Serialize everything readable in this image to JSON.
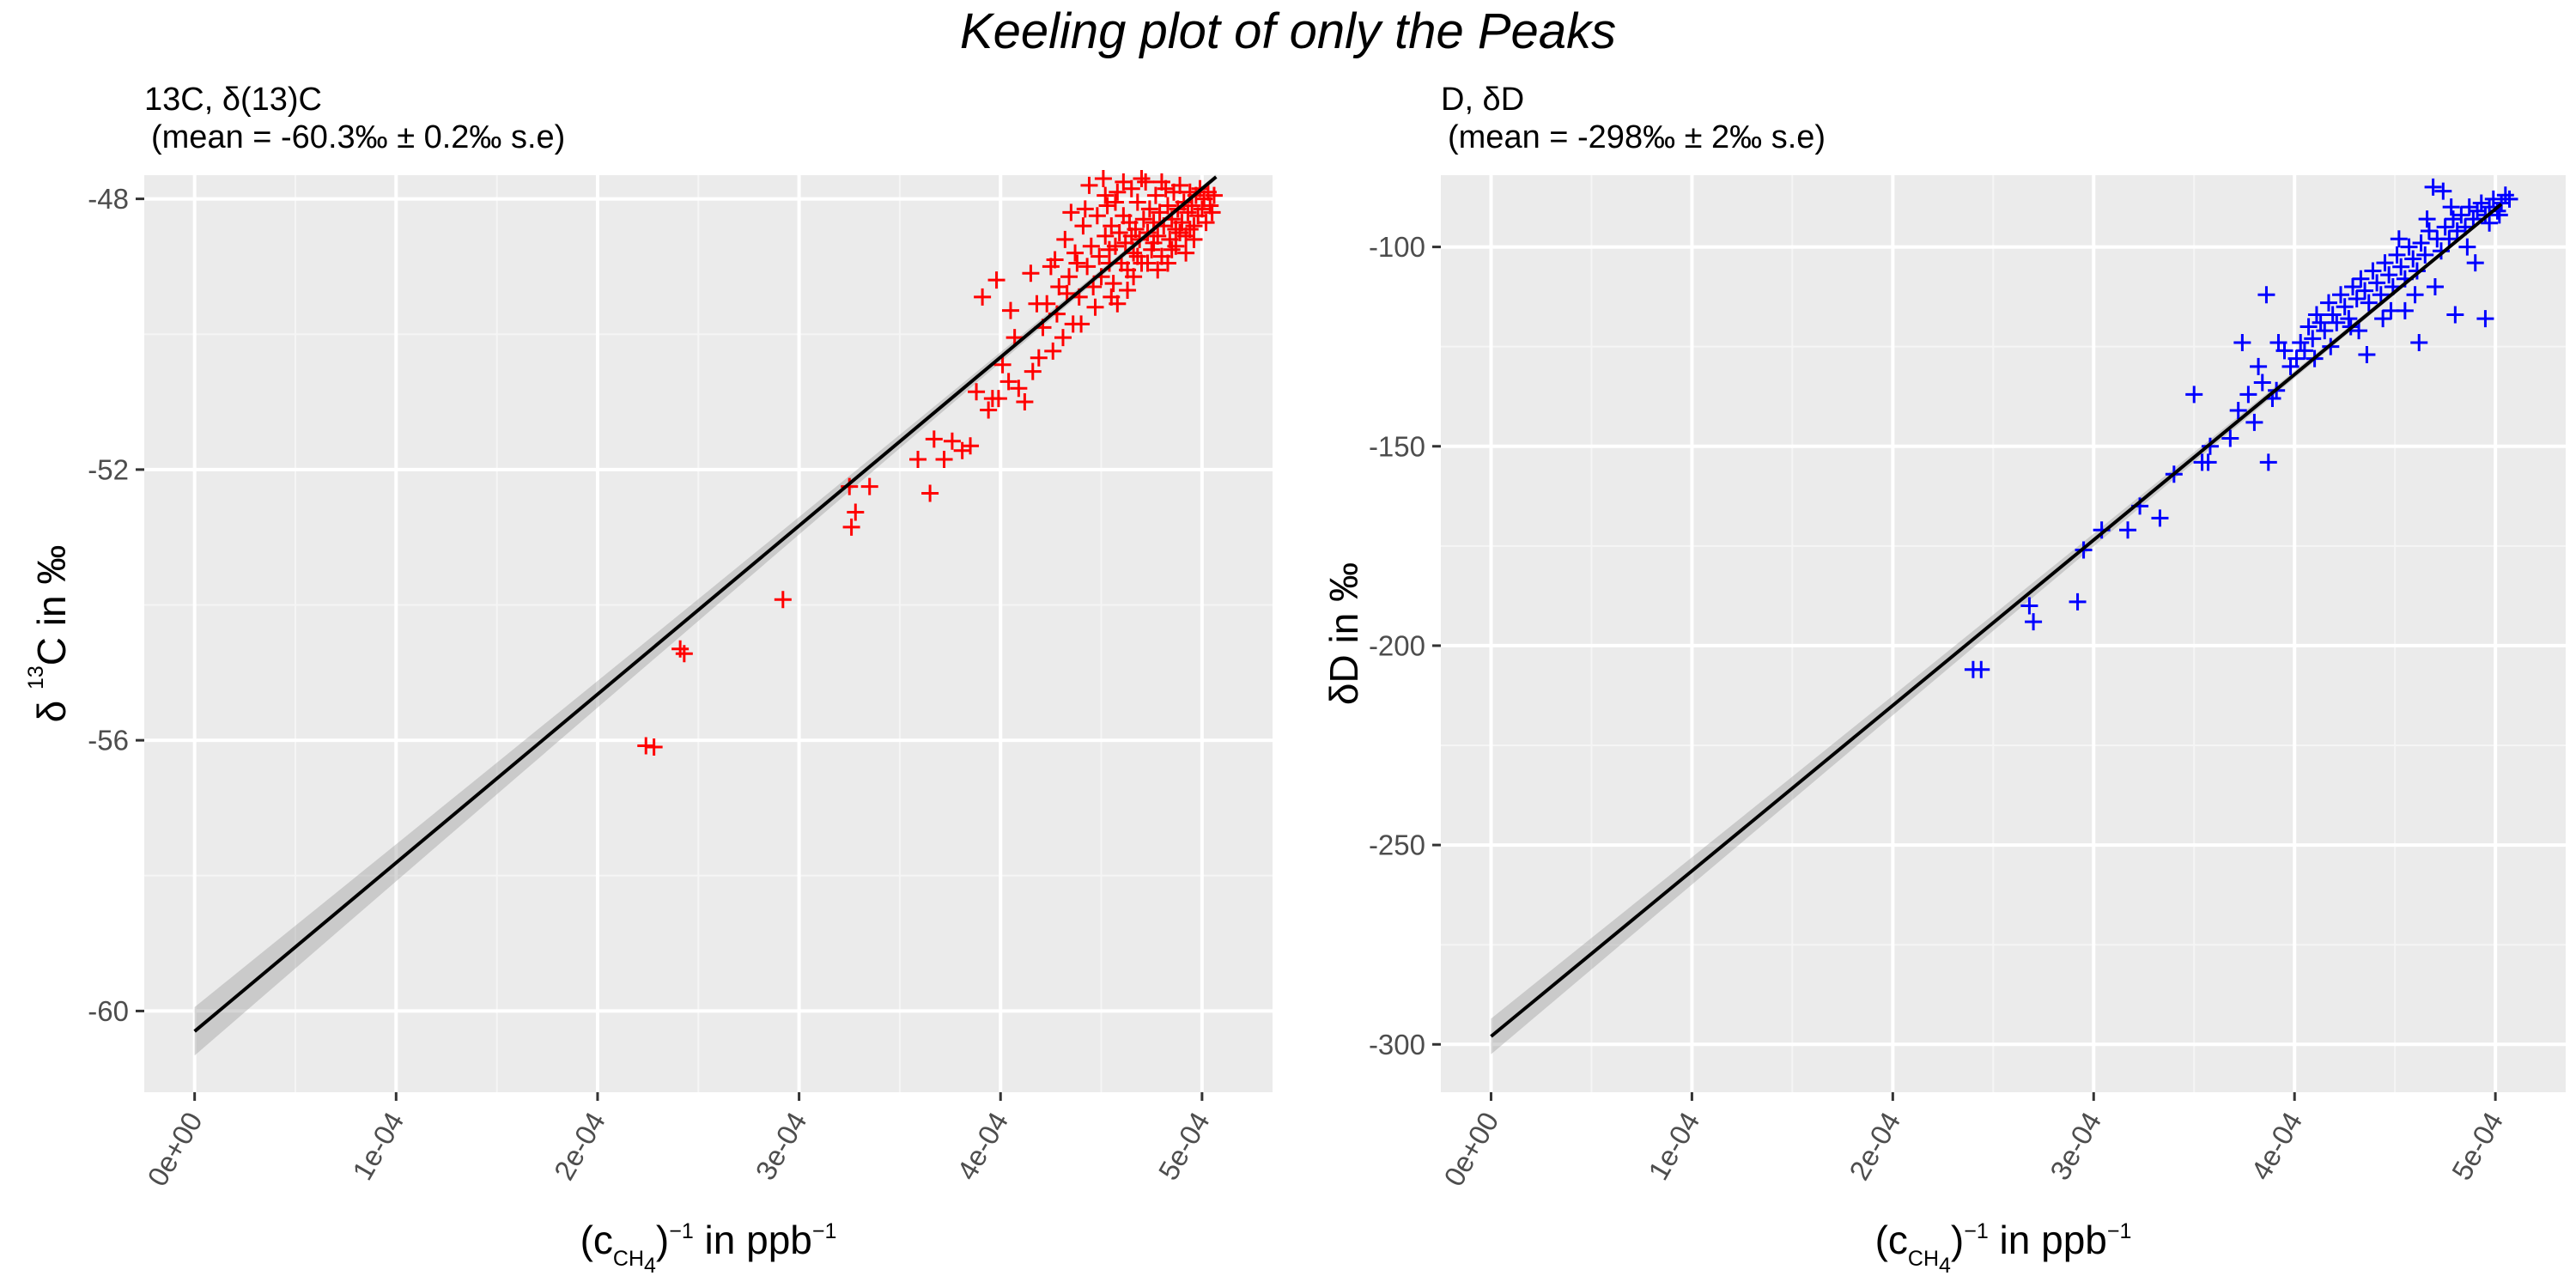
{
  "suptitle": "Keeling plot of only the Peaks",
  "chart_data": [
    {
      "type": "scatter",
      "title": "13C, δ(13)C",
      "subtitle": "(mean = -60.3‰ ± 0.2‰ s.e)",
      "xlabel_parts": [
        "(c",
        "CH",
        "4",
        ")",
        "−1",
        " in ppb",
        "−1"
      ],
      "ylabel_parts": [
        "δ ",
        "13",
        "C in ‰"
      ],
      "xlim": [
        -2.5e-05,
        0.000535
      ],
      "ylim": [
        -61.2,
        -47.65
      ],
      "x_ticks": [
        0,
        0.0001,
        0.0002,
        0.0003,
        0.0004,
        0.0005
      ],
      "x_tick_labels": [
        "0e+00",
        "1e-04",
        "2e-04",
        "3e-04",
        "4e-04",
        "5e-04"
      ],
      "y_ticks": [
        -60,
        -56,
        -52,
        -48
      ],
      "y_tick_labels": [
        "-60",
        "-56",
        "-52",
        "-48"
      ],
      "grid": true,
      "point_color": "#ff0000",
      "fit": {
        "intercept": -60.3,
        "slope": 24900,
        "x_range": [
          0,
          0.000507
        ],
        "ci_half_at_0": 0.32
      },
      "points": [
        [
          0.000224,
          -56.08
        ],
        [
          0.000228,
          -56.1
        ],
        [
          0.000241,
          -54.65
        ],
        [
          0.000243,
          -54.72
        ],
        [
          0.000292,
          -53.92
        ],
        [
          0.000325,
          -52.25
        ],
        [
          0.000326,
          -52.85
        ],
        [
          0.000328,
          -52.63
        ],
        [
          0.000335,
          -52.25
        ],
        [
          0.000359,
          -51.85
        ],
        [
          0.000365,
          -52.35
        ],
        [
          0.000367,
          -51.55
        ],
        [
          0.000372,
          -51.85
        ],
        [
          0.000376,
          -51.58
        ],
        [
          0.000381,
          -51.72
        ],
        [
          0.000385,
          -51.65
        ],
        [
          0.000388,
          -50.85
        ],
        [
          0.000391,
          -49.45
        ],
        [
          0.000394,
          -51.12
        ],
        [
          0.000396,
          -50.95
        ],
        [
          0.000399,
          -50.95
        ],
        [
          0.000401,
          -50.45
        ],
        [
          0.000404,
          -50.7
        ],
        [
          0.000407,
          -50.05
        ],
        [
          0.000409,
          -50.8
        ],
        [
          0.000412,
          -51.0
        ],
        [
          0.000416,
          -50.55
        ],
        [
          0.000419,
          -50.35
        ],
        [
          0.000421,
          -49.9
        ],
        [
          0.000423,
          -49.55
        ],
        [
          0.000426,
          -50.25
        ],
        [
          0.000428,
          -49.7
        ],
        [
          0.000431,
          -50.05
        ],
        [
          0.000433,
          -49.4
        ],
        [
          0.000436,
          -49.85
        ],
        [
          0.000398,
          -49.2
        ],
        [
          0.000405,
          -49.65
        ],
        [
          0.000415,
          -49.1
        ],
        [
          0.000418,
          -49.55
        ],
        [
          0.000425,
          -49.0
        ],
        [
          0.000429,
          -49.3
        ],
        [
          0.000432,
          -48.6
        ],
        [
          0.000434,
          -49.15
        ],
        [
          0.000437,
          -48.8
        ],
        [
          0.000439,
          -49.45
        ],
        [
          0.000441,
          -48.4
        ],
        [
          0.000443,
          -49.0
        ],
        [
          0.000445,
          -48.7
        ],
        [
          0.000446,
          -49.3
        ],
        [
          0.000448,
          -48.25
        ],
        [
          0.000449,
          -48.85
        ],
        [
          0.00045,
          -49.15
        ],
        [
          0.000452,
          -48.55
        ],
        [
          0.000453,
          -48.1
        ],
        [
          0.000454,
          -48.95
        ],
        [
          0.000455,
          -48.4
        ],
        [
          0.000456,
          -49.25
        ],
        [
          0.000457,
          -48.7
        ],
        [
          0.000458,
          -47.9
        ],
        [
          0.000459,
          -48.5
        ],
        [
          0.00046,
          -48.95
        ],
        [
          0.000461,
          -48.25
        ],
        [
          0.000462,
          -48.65
        ],
        [
          0.000463,
          -49.05
        ],
        [
          0.000464,
          -48.35
        ],
        [
          0.000465,
          -47.85
        ],
        [
          0.000466,
          -48.8
        ],
        [
          0.000467,
          -48.45
        ],
        [
          0.000468,
          -48.05
        ],
        [
          0.000469,
          -48.6
        ],
        [
          0.00047,
          -48.95
        ],
        [
          0.000471,
          -48.3
        ],
        [
          0.000472,
          -47.75
        ],
        [
          0.000473,
          -48.5
        ],
        [
          0.000474,
          -48.15
        ],
        [
          0.000475,
          -48.75
        ],
        [
          0.000476,
          -48.35
        ],
        [
          0.000477,
          -47.95
        ],
        [
          0.000478,
          -48.55
        ],
        [
          0.000479,
          -48.2
        ],
        [
          0.00048,
          -48.85
        ],
        [
          0.000481,
          -48.4
        ],
        [
          0.000482,
          -47.85
        ],
        [
          0.000483,
          -48.1
        ],
        [
          0.000484,
          -48.6
        ],
        [
          0.000485,
          -48.3
        ],
        [
          0.000486,
          -47.9
        ],
        [
          0.000487,
          -48.45
        ],
        [
          0.000488,
          -48.15
        ],
        [
          0.000489,
          -47.8
        ],
        [
          0.00049,
          -48.35
        ],
        [
          0.000491,
          -48.05
        ],
        [
          0.000492,
          -48.55
        ],
        [
          0.000493,
          -48.2
        ],
        [
          0.000494,
          -47.9
        ],
        [
          0.000495,
          -48.1
        ],
        [
          0.000496,
          -48.4
        ],
        [
          0.000497,
          -47.95
        ],
        [
          0.000498,
          -48.25
        ],
        [
          0.000499,
          -47.85
        ],
        [
          0.0005,
          -48.15
        ],
        [
          0.000501,
          -48.0
        ],
        [
          0.000502,
          -48.35
        ],
        [
          0.000503,
          -47.9
        ],
        [
          0.000504,
          -48.1
        ],
        [
          0.000505,
          -48.2
        ],
        [
          0.000506,
          -47.95
        ],
        [
          0.000444,
          -47.8
        ],
        [
          0.000451,
          -47.7
        ],
        [
          0.000458,
          -49.55
        ],
        [
          0.000463,
          -49.35
        ],
        [
          0.000447,
          -49.6
        ],
        [
          0.00044,
          -49.85
        ],
        [
          0.000435,
          -48.2
        ],
        [
          0.000427,
          -48.9
        ],
        [
          0.000438,
          -48.95
        ],
        [
          0.000442,
          -48.15
        ],
        [
          0.000457,
          -48.05
        ],
        [
          0.000468,
          -48.85
        ],
        [
          0.000473,
          -48.95
        ],
        [
          0.000478,
          -49.05
        ],
        [
          0.000487,
          -48.7
        ],
        [
          0.000492,
          -48.8
        ],
        [
          0.000496,
          -48.6
        ],
        [
          0.000483,
          -48.95
        ],
        [
          0.000466,
          -49.15
        ],
        [
          0.000455,
          -49.45
        ],
        [
          0.000452,
          -47.95
        ],
        [
          0.000461,
          -47.75
        ],
        [
          0.00047,
          -47.7
        ],
        [
          0.00048,
          -47.75
        ],
        [
          0.000489,
          -48.5
        ],
        [
          0.000494,
          -48.45
        ],
        [
          0.000485,
          -48.75
        ],
        [
          0.000476,
          -48.65
        ],
        [
          0.000465,
          -48.55
        ],
        [
          0.000454,
          -48.75
        ]
      ]
    },
    {
      "type": "scatter",
      "title": "D, δD",
      "subtitle": "(mean = -298‰ ± 2‰ s.e)",
      "xlabel_parts": [
        "(c",
        "CH",
        "4",
        ")",
        "−1",
        " in ppb",
        "−1"
      ],
      "ylabel_parts": [
        "δD in ‰",
        "",
        ""
      ],
      "xlim": [
        -2.5e-05,
        0.000535
      ],
      "ylim": [
        -312,
        -82
      ],
      "x_ticks": [
        0,
        0.0001,
        0.0002,
        0.0003,
        0.0004,
        0.0005
      ],
      "x_tick_labels": [
        "0e+00",
        "1e-04",
        "2e-04",
        "3e-04",
        "4e-04",
        "5e-04"
      ],
      "y_ticks": [
        -300,
        -250,
        -200,
        -150,
        -100
      ],
      "y_tick_labels": [
        "-300",
        "-250",
        "-200",
        "-150",
        "-100"
      ],
      "grid": true,
      "point_color": "#0000ff",
      "fit": {
        "intercept": -298,
        "slope": 415000,
        "x_range": [
          0,
          0.000503
        ],
        "ci_half_at_0": 4.0
      },
      "points": [
        [
          0.00024,
          -206
        ],
        [
          0.000244,
          -206
        ],
        [
          0.000268,
          -190
        ],
        [
          0.00027,
          -194
        ],
        [
          0.000292,
          -189
        ],
        [
          0.000295,
          -176
        ],
        [
          0.000304,
          -171
        ],
        [
          0.000317,
          -171
        ],
        [
          0.000323,
          -165
        ],
        [
          0.000333,
          -168
        ],
        [
          0.00034,
          -157
        ],
        [
          0.00035,
          -137
        ],
        [
          0.000354,
          -154
        ],
        [
          0.000357,
          -154
        ],
        [
          0.000358,
          -150
        ],
        [
          0.000368,
          -148
        ],
        [
          0.000372,
          -141
        ],
        [
          0.000374,
          -124
        ],
        [
          0.000377,
          -137
        ],
        [
          0.00038,
          -144
        ],
        [
          0.000382,
          -130
        ],
        [
          0.000384,
          -134
        ],
        [
          0.000386,
          -112
        ],
        [
          0.000387,
          -154
        ],
        [
          0.000389,
          -138
        ],
        [
          0.000391,
          -136
        ],
        [
          0.000392,
          -124
        ],
        [
          0.000395,
          -126
        ],
        [
          0.000398,
          -130
        ],
        [
          0.000401,
          -128
        ],
        [
          0.000403,
          -124
        ],
        [
          0.000405,
          -126
        ],
        [
          0.000407,
          -120
        ],
        [
          0.000409,
          -123
        ],
        [
          0.000411,
          -117
        ],
        [
          0.000413,
          -119
        ],
        [
          0.000415,
          -121
        ],
        [
          0.000417,
          -114
        ],
        [
          0.000419,
          -117
        ],
        [
          0.000421,
          -119
        ],
        [
          0.000423,
          -112
        ],
        [
          0.000425,
          -115
        ],
        [
          0.000427,
          -118
        ],
        [
          0.000429,
          -110
        ],
        [
          0.000431,
          -113
        ],
        [
          0.000433,
          -108
        ],
        [
          0.000435,
          -111
        ],
        [
          0.000437,
          -114
        ],
        [
          0.000439,
          -106
        ],
        [
          0.000441,
          -109
        ],
        [
          0.000443,
          -112
        ],
        [
          0.000445,
          -104
        ],
        [
          0.000447,
          -107
        ],
        [
          0.000449,
          -110
        ],
        [
          0.000451,
          -102
        ],
        [
          0.000453,
          -105
        ],
        [
          0.000455,
          -108
        ],
        [
          0.000457,
          -100
        ],
        [
          0.000459,
          -103
        ],
        [
          0.000461,
          -106
        ],
        [
          0.000463,
          -99
        ],
        [
          0.000465,
          -102
        ],
        [
          0.000467,
          -96
        ],
        [
          0.000469,
          -85
        ],
        [
          0.000471,
          -98
        ],
        [
          0.000473,
          -101
        ],
        [
          0.000475,
          -95
        ],
        [
          0.000477,
          -98
        ],
        [
          0.000479,
          -93
        ],
        [
          0.000481,
          -96
        ],
        [
          0.000483,
          -92
        ],
        [
          0.000485,
          -95
        ],
        [
          0.000487,
          -90
        ],
        [
          0.000489,
          -93
        ],
        [
          0.000491,
          -91
        ],
        [
          0.000493,
          -89
        ],
        [
          0.000495,
          -92
        ],
        [
          0.000497,
          -90
        ],
        [
          0.000499,
          -88
        ],
        [
          0.000501,
          -91
        ],
        [
          0.000503,
          -89
        ],
        [
          0.000505,
          -87
        ],
        [
          0.000507,
          -88
        ],
        [
          0.00048,
          -117
        ],
        [
          0.000495,
          -118
        ],
        [
          0.000462,
          -124
        ],
        [
          0.000455,
          -116
        ],
        [
          0.000448,
          -116
        ],
        [
          0.000436,
          -127
        ],
        [
          0.000428,
          -120
        ],
        [
          0.000474,
          -86
        ],
        [
          0.000486,
          -100
        ],
        [
          0.00049,
          -104
        ],
        [
          0.00047,
          -110
        ],
        [
          0.00046,
          -112
        ],
        [
          0.000444,
          -118
        ],
        [
          0.000432,
          -121
        ],
        [
          0.000418,
          -125
        ],
        [
          0.00041,
          -128
        ],
        [
          0.000452,
          -98
        ],
        [
          0.000466,
          -93
        ],
        [
          0.000478,
          -90
        ],
        [
          0.000497,
          -94
        ],
        [
          0.000502,
          -92
        ]
      ]
    }
  ]
}
